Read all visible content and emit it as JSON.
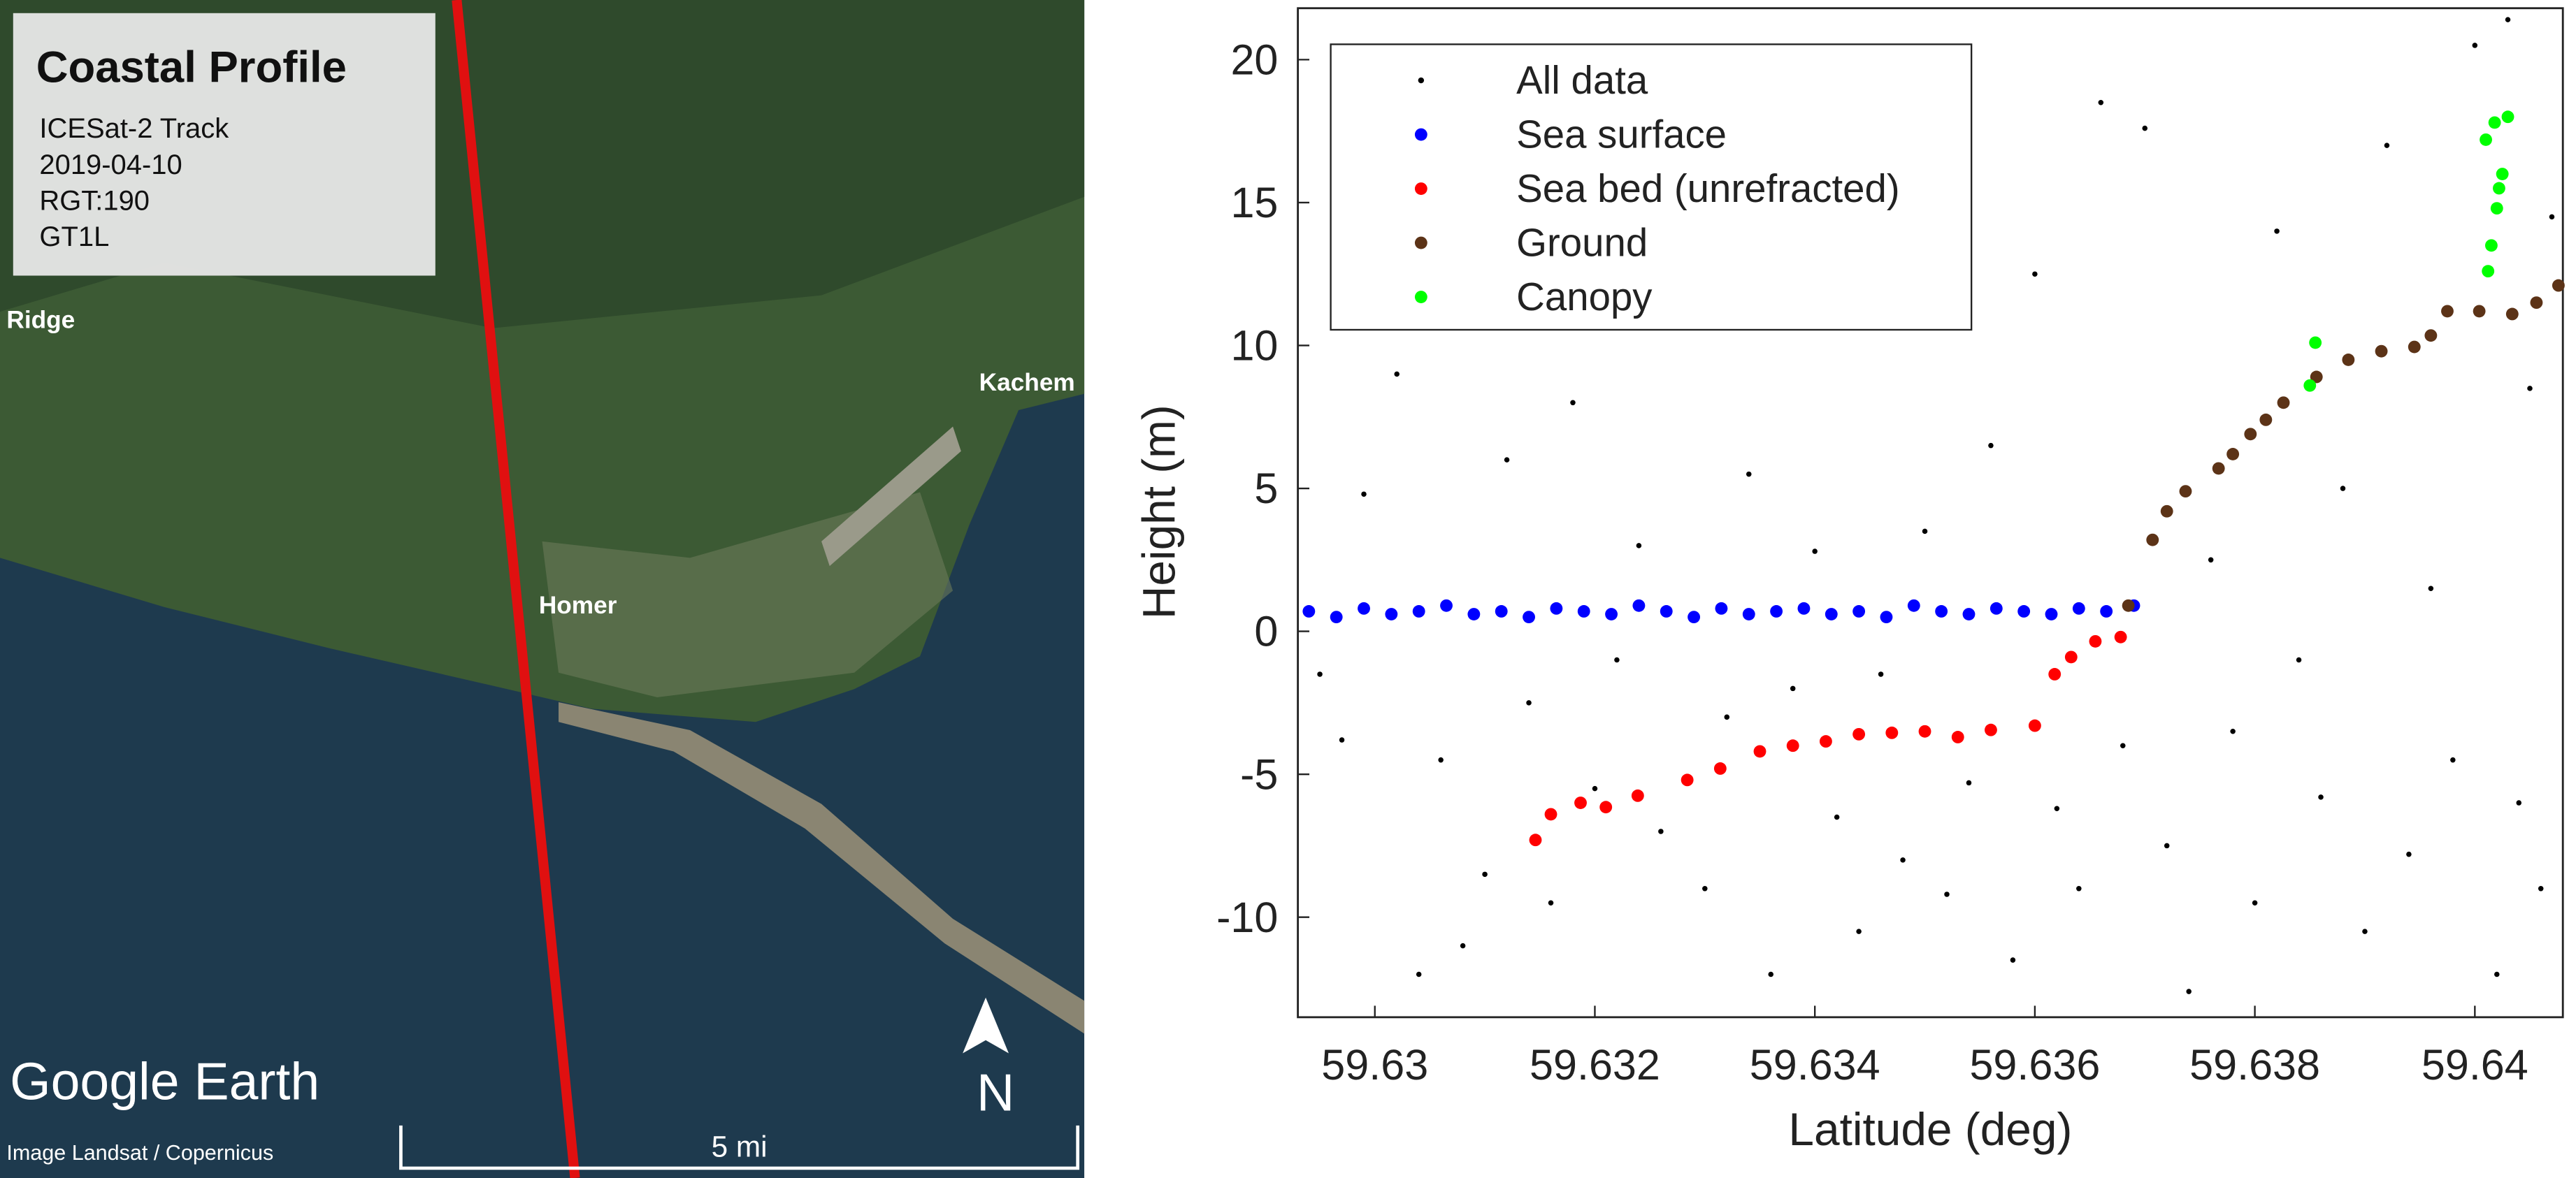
{
  "map": {
    "title": "Coastal Profile",
    "track_lines": [
      "ICESat-2 Track",
      "2019-04-10",
      "RGT:190",
      "GT1L"
    ],
    "place_labels": [
      "Ridge",
      "Kachem",
      "Homer"
    ],
    "logo": "Google Earth",
    "credit": "Image Landsat / Copernicus",
    "scale_label": "5 mi",
    "north_label": "N"
  },
  "chart_data": {
    "type": "scatter",
    "xlabel": "Latitude (deg)",
    "ylabel": "Height (m)",
    "xlim": [
      59.6293,
      59.6408
    ],
    "ylim": [
      -13.5,
      21.8
    ],
    "xticks": [
      59.63,
      59.632,
      59.634,
      59.636,
      59.638,
      59.64
    ],
    "yticks": [
      -10,
      -5,
      0,
      5,
      10,
      15,
      20
    ],
    "grid": false,
    "legend": "upper left",
    "series": [
      {
        "name": "All data",
        "color": "#000000",
        "x": [
          59.6295,
          59.6297,
          59.6299,
          59.6301,
          59.6302,
          59.6304,
          59.6306,
          59.6308,
          59.631,
          59.6312,
          59.6314,
          59.6316,
          59.6318,
          59.632,
          59.6322,
          59.6324,
          59.6326,
          59.6328,
          59.633,
          59.6332,
          59.6334,
          59.6336,
          59.6338,
          59.634,
          59.6342,
          59.6344,
          59.6346,
          59.6348,
          59.635,
          59.6352,
          59.6354,
          59.6356,
          59.6358,
          59.636,
          59.6362,
          59.6364,
          59.6366,
          59.6368,
          59.637,
          59.6372,
          59.6374,
          59.6376,
          59.6378,
          59.638,
          59.6382,
          59.6384,
          59.6386,
          59.6388,
          59.639,
          59.6392,
          59.6394,
          59.6396,
          59.6398,
          59.64,
          59.6402,
          59.6403,
          59.6404,
          59.6405,
          59.6406,
          59.6407
        ],
        "values": [
          -1.5,
          -3.8,
          4.8,
          17.9,
          9.0,
          -12.0,
          -4.5,
          -11.0,
          -8.5,
          6.0,
          -2.5,
          -9.5,
          8.0,
          -5.5,
          -1.0,
          3.0,
          -7.0,
          13.5,
          -9.0,
          -3.0,
          5.5,
          -12.0,
          -2.0,
          2.8,
          -6.5,
          -10.5,
          -1.5,
          -8.0,
          3.5,
          -9.2,
          -5.3,
          6.5,
          -11.5,
          12.5,
          -6.2,
          -9.0,
          18.5,
          -4.0,
          17.6,
          -7.5,
          -12.6,
          2.5,
          -3.5,
          -9.5,
          14.0,
          -1.0,
          -5.8,
          5.0,
          -10.5,
          17.0,
          -7.8,
          1.5,
          -4.5,
          20.5,
          -12.0,
          21.4,
          -6.0,
          8.5,
          -9.0,
          14.5
        ]
      },
      {
        "name": "Sea surface",
        "color": "#0000ff",
        "x": [
          59.6294,
          59.62965,
          59.6299,
          59.63015,
          59.6304,
          59.63065,
          59.6309,
          59.63115,
          59.6314,
          59.63165,
          59.6319,
          59.63215,
          59.6324,
          59.63265,
          59.6329,
          59.63315,
          59.6334,
          59.63365,
          59.6339,
          59.63415,
          59.6344,
          59.63465,
          59.6349,
          59.63515,
          59.6354,
          59.63565,
          59.6359,
          59.63615,
          59.6364,
          59.63665,
          59.6369
        ],
        "values": [
          0.7,
          0.5,
          0.8,
          0.6,
          0.7,
          0.9,
          0.6,
          0.7,
          0.5,
          0.8,
          0.7,
          0.6,
          0.9,
          0.7,
          0.5,
          0.8,
          0.6,
          0.7,
          0.8,
          0.6,
          0.7,
          0.5,
          0.9,
          0.7,
          0.6,
          0.8,
          0.7,
          0.6,
          0.8,
          0.7,
          0.9
        ]
      },
      {
        "name": "Sea bed (unrefracted)",
        "color": "#ff0000",
        "x": [
          59.63146,
          59.6316,
          59.63187,
          59.6321,
          59.63239,
          59.63284,
          59.63314,
          59.6335,
          59.6338,
          59.6341,
          59.6344,
          59.6347,
          59.635,
          59.6353,
          59.6356,
          59.636,
          59.63618,
          59.63633,
          59.63655,
          59.63678
        ],
        "values": [
          -7.3,
          -6.4,
          -6.0,
          -6.15,
          -5.75,
          -5.2,
          -4.8,
          -4.2,
          -4.0,
          -3.85,
          -3.6,
          -3.55,
          -3.5,
          -3.7,
          -3.45,
          -3.3,
          -1.5,
          -0.9,
          -0.35,
          -0.2
        ]
      },
      {
        "name": "Ground",
        "color": "#5c3317",
        "x": [
          59.63685,
          59.63707,
          59.6372,
          59.63737,
          59.63767,
          59.6378,
          59.63796,
          59.6381,
          59.63826,
          59.63856,
          59.63885,
          59.63915,
          59.63945,
          59.6396,
          59.63975,
          59.64004,
          59.64034,
          59.64056,
          59.64076
        ],
        "values": [
          0.9,
          3.2,
          4.2,
          4.9,
          5.7,
          6.2,
          6.9,
          7.4,
          8.0,
          8.9,
          9.5,
          9.8,
          9.95,
          10.35,
          11.2,
          11.2,
          11.1,
          11.5,
          12.1
        ]
      },
      {
        "name": "Canopy",
        "color": "#00ff00",
        "x": [
          59.6385,
          59.63855,
          59.64012,
          59.64015,
          59.6402,
          59.64025,
          59.6401,
          59.6403,
          59.64022,
          59.64018
        ],
        "values": [
          8.6,
          10.1,
          12.6,
          13.5,
          14.8,
          16.0,
          17.2,
          18.0,
          15.5,
          17.8
        ]
      }
    ]
  }
}
